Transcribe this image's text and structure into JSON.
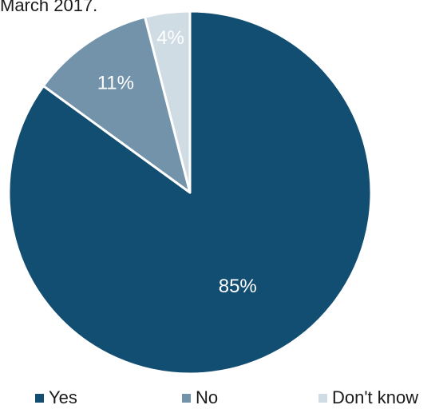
{
  "caption": "March 2017.",
  "chart_data": {
    "type": "pie",
    "categories": [
      "Yes",
      "No",
      "Don't know"
    ],
    "values": [
      85,
      11,
      4
    ],
    "labels": [
      "85%",
      "11%",
      "4%"
    ],
    "colors": [
      "#124d72",
      "#7393ab",
      "#d0dce4"
    ],
    "start": "12 o'clock",
    "direction": "clockwise",
    "legend_position": "bottom"
  }
}
